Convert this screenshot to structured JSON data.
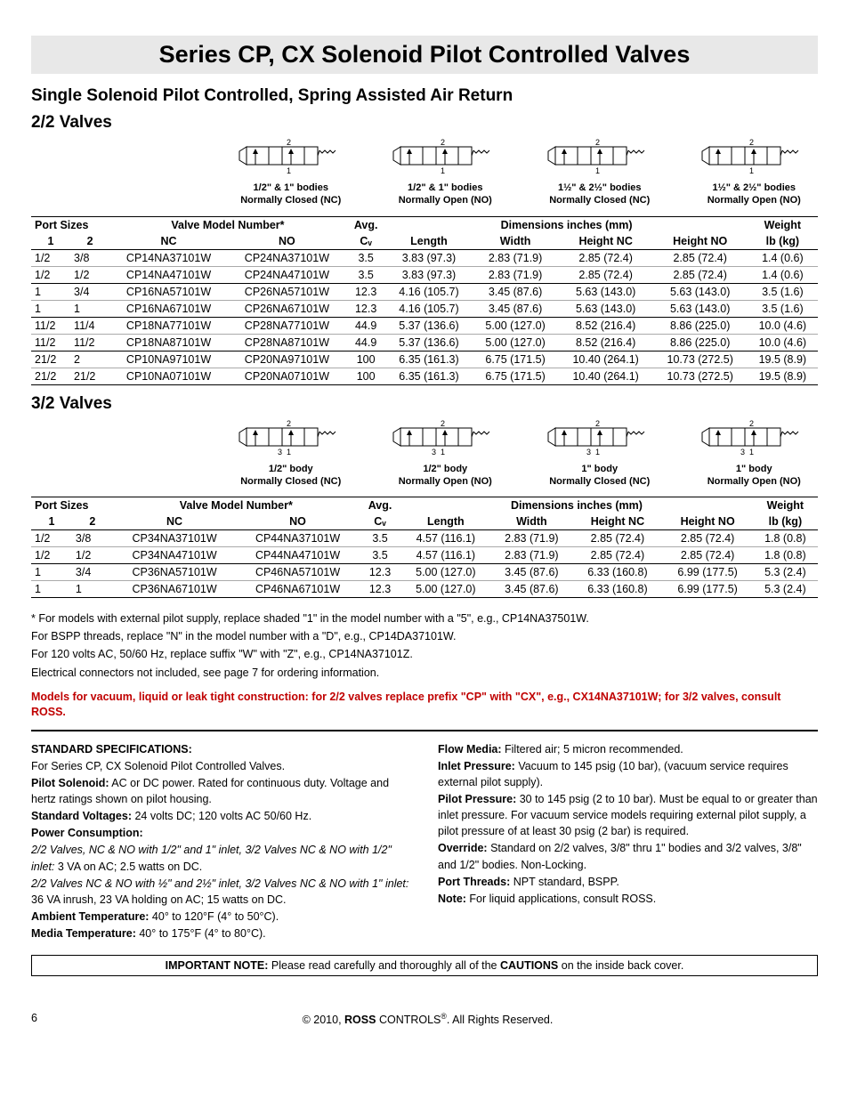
{
  "title": "Series CP, CX Solenoid Pilot Controlled Valves",
  "subtitle": "Single Solenoid Pilot Controlled, Spring Assisted Air Return",
  "section1": "2/2 Valves",
  "section2": "3/2 Valves",
  "diagrams22": [
    {
      "line1": "1/2\" & 1\" bodies",
      "line2": "Normally Closed (NC)"
    },
    {
      "line1": "1/2\" & 1\" bodies",
      "line2": "Normally Open (NO)"
    },
    {
      "line1": "1½\" & 2½\" bodies",
      "line2": "Normally Closed (NC)"
    },
    {
      "line1": "1½\" & 2½\" bodies",
      "line2": "Normally Open (NO)"
    }
  ],
  "diagrams32": [
    {
      "line1": "1/2\" body",
      "line2": "Normally Closed (NC)"
    },
    {
      "line1": "1/2\" body",
      "line2": "Normally Open (NO)"
    },
    {
      "line1": "1\" body",
      "line2": "Normally Closed (NC)"
    },
    {
      "line1": "1\" body",
      "line2": "Normally Open (NO)"
    }
  ],
  "table_headers": {
    "port_sizes": "Port Sizes",
    "model": "Valve Model Number*",
    "avg": "Avg.",
    "dims": "Dimensions",
    "dims_unit": " inches (mm)",
    "weight": "Weight",
    "p1": "1",
    "p2": "2",
    "nc": "NC",
    "no": "NO",
    "cv": "Cᵥ",
    "length": "Length",
    "width": "Width",
    "hnc": "Height NC",
    "hno": "Height NO",
    "lbkg": "lb (kg)"
  },
  "rows22": [
    [
      "1/2",
      "3/8",
      "CP14NA37101W",
      "CP24NA37101W",
      "3.5",
      "3.83 (97.3)",
      "2.83 (71.9)",
      "2.85 (72.4)",
      "2.85 (72.4)",
      "1.4 (0.6)"
    ],
    [
      "1/2",
      "1/2",
      "CP14NA47101W",
      "CP24NA47101W",
      "3.5",
      "3.83 (97.3)",
      "2.83 (71.9)",
      "2.85 (72.4)",
      "2.85 (72.4)",
      "1.4 (0.6)",
      "end"
    ],
    [
      "1",
      "3/4",
      "CP16NA57101W",
      "CP26NA57101W",
      "12.3",
      "4.16 (105.7)",
      "3.45 (87.6)",
      "5.63 (143.0)",
      "5.63 (143.0)",
      "3.5 (1.6)"
    ],
    [
      "1",
      "1",
      "CP16NA67101W",
      "CP26NA67101W",
      "12.3",
      "4.16 (105.7)",
      "3.45 (87.6)",
      "5.63 (143.0)",
      "5.63 (143.0)",
      "3.5 (1.6)",
      "end"
    ],
    [
      "11/2",
      "11/4",
      "CP18NA77101W",
      "CP28NA77101W",
      "44.9",
      "5.37 (136.6)",
      "5.00 (127.0)",
      "8.52 (216.4)",
      "8.86 (225.0)",
      "10.0 (4.6)"
    ],
    [
      "11/2",
      "11/2",
      "CP18NA87101W",
      "CP28NA87101W",
      "44.9",
      "5.37 (136.6)",
      "5.00 (127.0)",
      "8.52 (216.4)",
      "8.86 (225.0)",
      "10.0 (4.6)",
      "end"
    ],
    [
      "21/2",
      "2",
      "CP10NA97101W",
      "CP20NA97101W",
      "100",
      "6.35 (161.3)",
      "6.75 (171.5)",
      "10.40 (264.1)",
      "10.73 (272.5)",
      "19.5 (8.9)"
    ],
    [
      "21/2",
      "21/2",
      "CP10NA07101W",
      "CP20NA07101W",
      "100",
      "6.35 (161.3)",
      "6.75 (171.5)",
      "10.40 (264.1)",
      "10.73 (272.5)",
      "19.5 (8.9)",
      "end"
    ]
  ],
  "rows32": [
    [
      "1/2",
      "3/8",
      "CP34NA37101W",
      "CP44NA37101W",
      "3.5",
      "4.57 (116.1)",
      "2.83 (71.9)",
      "2.85 (72.4)",
      "2.85 (72.4)",
      "1.8 (0.8)"
    ],
    [
      "1/2",
      "1/2",
      "CP34NA47101W",
      "CP44NA47101W",
      "3.5",
      "4.57 (116.1)",
      "2.83 (71.9)",
      "2.85 (72.4)",
      "2.85 (72.4)",
      "1.8 (0.8)",
      "end"
    ],
    [
      "1",
      "3/4",
      "CP36NA57101W",
      "CP46NA57101W",
      "12.3",
      "5.00 (127.0)",
      "3.45 (87.6)",
      "6.33 (160.8)",
      "6.99 (177.5)",
      "5.3 (2.4)"
    ],
    [
      "1",
      "1",
      "CP36NA67101W",
      "CP46NA67101W",
      "12.3",
      "5.00 (127.0)",
      "3.45 (87.6)",
      "6.33 (160.8)",
      "6.99 (177.5)",
      "5.3 (2.4)",
      "end"
    ]
  ],
  "footnotes": [
    "* For models with external pilot supply, replace shaded \"1\" in the model number with a \"5\", e.g., CP14NA37501W.",
    "  For BSPP threads, replace \"N\" in the model number with a \"D\", e.g., CP14DA37101W.",
    "  For 120 volts AC, 50/60 Hz, replace suffix \"W\" with \"Z\", e.g., CP14NA37101Z.",
    "  Electrical connectors not included, see page 7 for ordering information."
  ],
  "red_note": "Models for vacuum, liquid or leak tight construction: for 2/2 valves replace  prefix \"CP\" with \"CX\", e.g., CX14NA37101W; for 3/2 valves, consult ROSS.",
  "specs_title": "STANDARD SPECIFICATIONS:",
  "specs_left": [
    {
      "t": "For Series CP, CX Solenoid Pilot Controlled Valves."
    },
    {
      "b": "Pilot Solenoid:",
      "t": "  AC or DC power.  Rated for continuous duty. Voltage and hertz ratings shown on pilot housing."
    },
    {
      "b": "Standard Voltages:",
      "t": "  24 volts DC; 120 volts AC 50/60 Hz."
    },
    {
      "b": "Power Consumption:"
    },
    {
      "i": "2/2 Valves, NC & NO with 1/2\" and 1\" inlet, 3/2 Valves NC & NO with 1/2\" inlet:",
      "t": "  3 VA on AC; 2.5 watts on DC."
    },
    {
      "i": "2/2 Valves NC & NO with ½\" and 2½\" inlet, 3/2 Valves NC & NO with 1\" inlet:",
      "t": "  36 VA inrush, 23 VA holding on AC; 15 watts on DC."
    },
    {
      "b": "Ambient Temperature:",
      "t": "  40° to 120°F (4° to 50°C)."
    },
    {
      "b": "Media Temperature:",
      "t": "  40° to 175°F (4° to 80°C)."
    }
  ],
  "specs_right": [
    {
      "b": "Flow Media:",
      "t": "  Filtered air; 5 micron recommended."
    },
    {
      "b": "Inlet Pressure:",
      "t": " Vacuum to 145 psig (10 bar), (vacuum service requires external pilot supply)."
    },
    {
      "b": "Pilot Pressure:",
      "t": "  30 to 145 psig  (2 to 10 bar).  Must be equal to or greater than inlet pressure.  For vacuum service models requiring external pilot supply, a pilot pressure of at least 30 psig (2 bar) is required."
    },
    {
      "b": "Override:",
      "t": "  Standard on  2/2 valves, 3/8\" thru 1\" bodies and  3/2 valves,  3/8\" and 1/2\" bodies.  Non-Locking."
    },
    {
      "b": "Port Threads:",
      "t": "  NPT standard, BSPP."
    },
    {
      "b": "Note:",
      "t": "  For liquid applications, consult ROSS."
    }
  ],
  "important": {
    "label": "IMPORTANT NOTE:",
    "text": "  Please read carefully and thoroughly all of the ",
    "label2": "CAUTIONS",
    "text2": " on the inside back cover."
  },
  "footer": {
    "page": "6",
    "center": "© 2010,  ROSS CONTROLS®.  All Rights Reserved."
  }
}
